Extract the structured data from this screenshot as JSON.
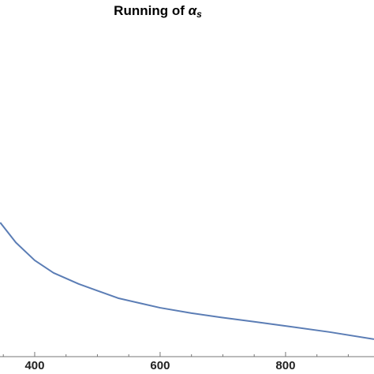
{
  "chart_data": {
    "type": "line",
    "title": "Running of ",
    "title_symbol": "α",
    "title_subscript": "s",
    "x": [
      345,
      370,
      400,
      430,
      470,
      500,
      533,
      570,
      600,
      650,
      697,
      750,
      800,
      870,
      941
    ],
    "series": [
      {
        "color": "#5b7db5",
        "values": [
          37.6,
          32,
          27,
          23.5,
          20.4,
          18.5,
          16.4,
          14.9,
          13.7,
          12.2,
          11,
          9.8,
          8.6,
          6.9,
          4.9
        ]
      }
    ],
    "xlim": [
      344.7,
      941
    ],
    "xticks": [
      400,
      600,
      800
    ],
    "xminorticks": [
      350,
      450,
      500,
      550,
      650,
      700,
      750,
      850,
      900
    ],
    "ylim": [
      0,
      100
    ]
  }
}
